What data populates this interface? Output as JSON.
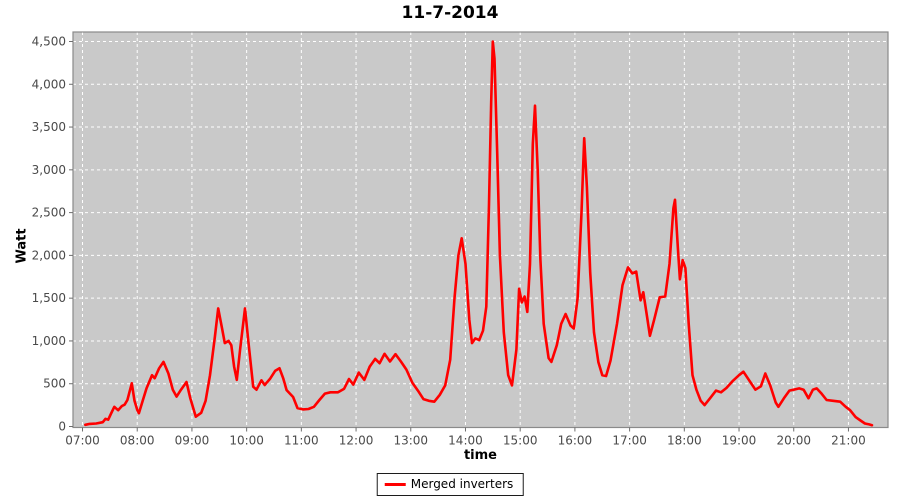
{
  "header": {
    "title": "11-7-2014"
  },
  "chart_data": {
    "type": "line",
    "title": "11-7-2014",
    "xlabel": "time",
    "ylabel": "Watt",
    "legend": {
      "position": "bottom",
      "entries": [
        {
          "label": "Merged inverters",
          "color": "#ff0000"
        }
      ]
    },
    "grid": true,
    "x_ticks": {
      "hours": [
        7,
        8,
        9,
        10,
        11,
        12,
        13,
        14,
        15,
        16,
        17,
        18,
        19,
        20,
        21
      ],
      "labels": [
        "07:00",
        "08:00",
        "09:00",
        "10:00",
        "11:00",
        "12:00",
        "13:00",
        "14:00",
        "15:00",
        "16:00",
        "17:00",
        "18:00",
        "19:00",
        "20:00",
        "21:00"
      ]
    },
    "y_ticks": {
      "values": [
        0,
        500,
        1000,
        1500,
        2000,
        2500,
        3000,
        3500,
        4000,
        4500
      ],
      "labels": [
        "0",
        "500",
        "1,000",
        "1,500",
        "2,000",
        "2,500",
        "3,000",
        "3,500",
        "4,000",
        "4,500"
      ]
    },
    "xlim_hours": [
      6.826,
      21.723
    ],
    "ylim": [
      0,
      4611
    ],
    "colors": {
      "line": "#ff0000",
      "plot_bg": "#c9c9c9",
      "grid": "#ffffff",
      "outer_bg": "#ffffff",
      "plot_border": "#8a8a8a",
      "tick": "#6e6e6e",
      "tick_text": "#4a4a4a"
    },
    "series": [
      {
        "name": "Merged inverters",
        "points_hour_watt": [
          [
            7.05,
            20
          ],
          [
            7.13,
            30
          ],
          [
            7.25,
            35
          ],
          [
            7.37,
            50
          ],
          [
            7.42,
            90
          ],
          [
            7.47,
            80
          ],
          [
            7.52,
            150
          ],
          [
            7.58,
            230
          ],
          [
            7.65,
            190
          ],
          [
            7.72,
            240
          ],
          [
            7.77,
            255
          ],
          [
            7.82,
            310
          ],
          [
            7.87,
            430
          ],
          [
            7.9,
            505
          ],
          [
            7.95,
            300
          ],
          [
            8.0,
            195
          ],
          [
            8.03,
            155
          ],
          [
            8.1,
            300
          ],
          [
            8.17,
            445
          ],
          [
            8.27,
            600
          ],
          [
            8.32,
            565
          ],
          [
            8.4,
            680
          ],
          [
            8.48,
            755
          ],
          [
            8.57,
            620
          ],
          [
            8.65,
            430
          ],
          [
            8.72,
            350
          ],
          [
            8.8,
            430
          ],
          [
            8.9,
            520
          ],
          [
            8.97,
            330
          ],
          [
            9.07,
            115
          ],
          [
            9.17,
            160
          ],
          [
            9.25,
            300
          ],
          [
            9.33,
            600
          ],
          [
            9.42,
            1050
          ],
          [
            9.48,
            1380
          ],
          [
            9.55,
            1150
          ],
          [
            9.6,
            975
          ],
          [
            9.67,
            1000
          ],
          [
            9.72,
            950
          ],
          [
            9.77,
            700
          ],
          [
            9.82,
            545
          ],
          [
            9.88,
            900
          ],
          [
            9.97,
            1380
          ],
          [
            10.03,
            1000
          ],
          [
            10.12,
            465
          ],
          [
            10.18,
            430
          ],
          [
            10.27,
            540
          ],
          [
            10.33,
            485
          ],
          [
            10.43,
            560
          ],
          [
            10.52,
            650
          ],
          [
            10.6,
            680
          ],
          [
            10.67,
            560
          ],
          [
            10.73,
            425
          ],
          [
            10.85,
            345
          ],
          [
            10.93,
            215
          ],
          [
            11.03,
            200
          ],
          [
            11.13,
            205
          ],
          [
            11.23,
            230
          ],
          [
            11.33,
            310
          ],
          [
            11.43,
            385
          ],
          [
            11.53,
            400
          ],
          [
            11.67,
            400
          ],
          [
            11.78,
            440
          ],
          [
            11.87,
            555
          ],
          [
            11.95,
            490
          ],
          [
            12.05,
            630
          ],
          [
            12.15,
            545
          ],
          [
            12.25,
            700
          ],
          [
            12.35,
            790
          ],
          [
            12.43,
            740
          ],
          [
            12.52,
            850
          ],
          [
            12.62,
            760
          ],
          [
            12.72,
            845
          ],
          [
            12.82,
            760
          ],
          [
            12.92,
            665
          ],
          [
            13.03,
            510
          ],
          [
            13.13,
            420
          ],
          [
            13.23,
            320
          ],
          [
            13.33,
            300
          ],
          [
            13.43,
            290
          ],
          [
            13.53,
            370
          ],
          [
            13.63,
            480
          ],
          [
            13.72,
            780
          ],
          [
            13.8,
            1500
          ],
          [
            13.87,
            2000
          ],
          [
            13.93,
            2200
          ],
          [
            14.0,
            1900
          ],
          [
            14.07,
            1250
          ],
          [
            14.12,
            975
          ],
          [
            14.18,
            1030
          ],
          [
            14.25,
            1010
          ],
          [
            14.32,
            1120
          ],
          [
            14.38,
            1400
          ],
          [
            14.43,
            2600
          ],
          [
            14.47,
            3800
          ],
          [
            14.5,
            4500
          ],
          [
            14.53,
            4300
          ],
          [
            14.58,
            3200
          ],
          [
            14.63,
            2000
          ],
          [
            14.7,
            1100
          ],
          [
            14.78,
            600
          ],
          [
            14.85,
            480
          ],
          [
            14.93,
            900
          ],
          [
            14.98,
            1610
          ],
          [
            15.03,
            1450
          ],
          [
            15.08,
            1520
          ],
          [
            15.13,
            1340
          ],
          [
            15.18,
            1900
          ],
          [
            15.23,
            3300
          ],
          [
            15.27,
            3750
          ],
          [
            15.32,
            3000
          ],
          [
            15.37,
            1950
          ],
          [
            15.43,
            1200
          ],
          [
            15.52,
            800
          ],
          [
            15.57,
            755
          ],
          [
            15.67,
            950
          ],
          [
            15.75,
            1200
          ],
          [
            15.83,
            1315
          ],
          [
            15.92,
            1180
          ],
          [
            15.98,
            1145
          ],
          [
            16.05,
            1500
          ],
          [
            16.12,
            2500
          ],
          [
            16.17,
            3370
          ],
          [
            16.22,
            2800
          ],
          [
            16.28,
            1800
          ],
          [
            16.35,
            1100
          ],
          [
            16.43,
            750
          ],
          [
            16.5,
            600
          ],
          [
            16.57,
            590
          ],
          [
            16.65,
            770
          ],
          [
            16.77,
            1200
          ],
          [
            16.87,
            1650
          ],
          [
            16.97,
            1860
          ],
          [
            17.05,
            1790
          ],
          [
            17.12,
            1810
          ],
          [
            17.2,
            1475
          ],
          [
            17.25,
            1570
          ],
          [
            17.32,
            1280
          ],
          [
            17.37,
            1060
          ],
          [
            17.45,
            1250
          ],
          [
            17.55,
            1510
          ],
          [
            17.65,
            1520
          ],
          [
            17.73,
            1900
          ],
          [
            17.8,
            2550
          ],
          [
            17.83,
            2650
          ],
          [
            17.88,
            2100
          ],
          [
            17.92,
            1720
          ],
          [
            17.97,
            1945
          ],
          [
            18.02,
            1850
          ],
          [
            18.08,
            1200
          ],
          [
            18.15,
            600
          ],
          [
            18.22,
            430
          ],
          [
            18.3,
            300
          ],
          [
            18.37,
            250
          ],
          [
            18.47,
            330
          ],
          [
            18.58,
            420
          ],
          [
            18.67,
            400
          ],
          [
            18.77,
            450
          ],
          [
            18.88,
            530
          ],
          [
            19.0,
            600
          ],
          [
            19.08,
            640
          ],
          [
            19.3,
            430
          ],
          [
            19.4,
            470
          ],
          [
            19.48,
            620
          ],
          [
            19.57,
            480
          ],
          [
            19.67,
            280
          ],
          [
            19.72,
            230
          ],
          [
            19.82,
            330
          ],
          [
            19.92,
            420
          ],
          [
            20.0,
            430
          ],
          [
            20.1,
            445
          ],
          [
            20.18,
            430
          ],
          [
            20.27,
            330
          ],
          [
            20.35,
            430
          ],
          [
            20.42,
            445
          ],
          [
            20.5,
            390
          ],
          [
            20.6,
            310
          ],
          [
            20.72,
            300
          ],
          [
            20.85,
            290
          ],
          [
            20.95,
            230
          ],
          [
            21.03,
            190
          ],
          [
            21.13,
            110
          ],
          [
            21.22,
            70
          ],
          [
            21.3,
            35
          ],
          [
            21.38,
            25
          ],
          [
            21.43,
            15
          ]
        ]
      }
    ]
  }
}
